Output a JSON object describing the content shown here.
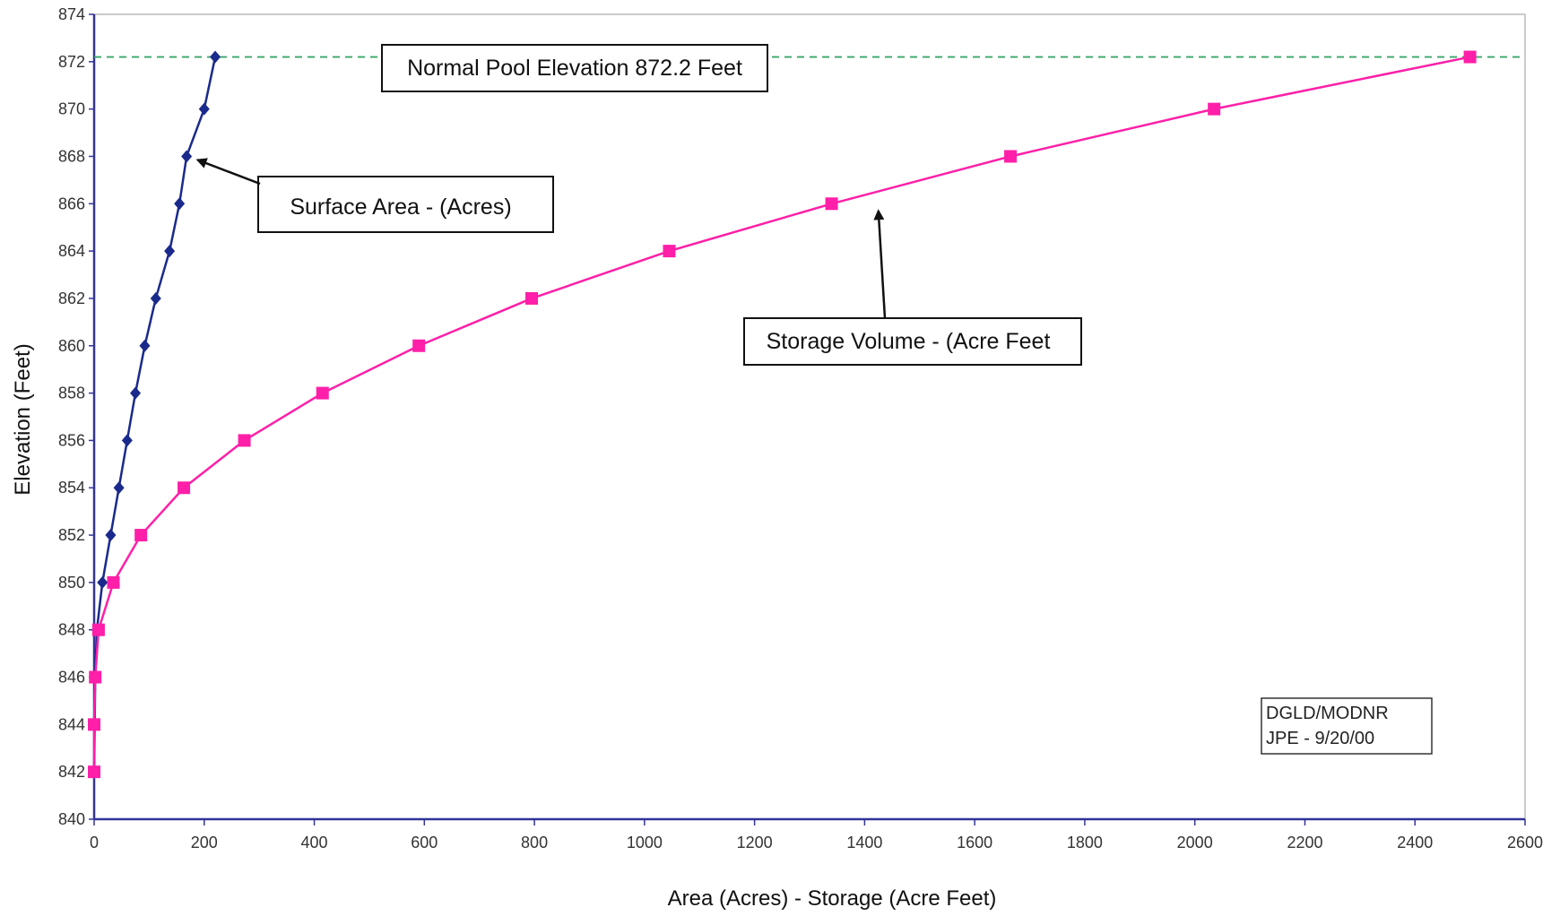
{
  "chart_data": {
    "type": "line",
    "xlabel": "Area (Acres) - Storage (Acre Feet)",
    "ylabel": "Elevation (Feet)",
    "xlim": [
      0,
      2600
    ],
    "ylim": [
      840,
      874
    ],
    "x_ticks": [
      0,
      200,
      400,
      600,
      800,
      1000,
      1200,
      1400,
      1600,
      1800,
      2000,
      2200,
      2400,
      2600
    ],
    "y_ticks": [
      840,
      842,
      844,
      846,
      848,
      850,
      852,
      854,
      856,
      858,
      860,
      862,
      864,
      866,
      868,
      870,
      872,
      874
    ],
    "grid": false,
    "legend": "none",
    "series": [
      {
        "name": "Surface Area - (Acres)",
        "color": "#1a2a8c",
        "marker": "diamond",
        "points": [
          {
            "x": 0,
            "y": 842
          },
          {
            "x": 1,
            "y": 844
          },
          {
            "x": 2,
            "y": 846
          },
          {
            "x": 5,
            "y": 848
          },
          {
            "x": 15,
            "y": 850
          },
          {
            "x": 30,
            "y": 852
          },
          {
            "x": 45,
            "y": 854
          },
          {
            "x": 60,
            "y": 856
          },
          {
            "x": 75,
            "y": 858
          },
          {
            "x": 92,
            "y": 860
          },
          {
            "x": 112,
            "y": 862
          },
          {
            "x": 137,
            "y": 864
          },
          {
            "x": 155,
            "y": 866
          },
          {
            "x": 168,
            "y": 868
          },
          {
            "x": 200,
            "y": 870
          },
          {
            "x": 220,
            "y": 872.2
          }
        ]
      },
      {
        "name": "Storage Volume - (Acre Feet",
        "color": "#ff1fa8",
        "marker": "square",
        "points": [
          {
            "x": 0,
            "y": 842
          },
          {
            "x": 0,
            "y": 844
          },
          {
            "x": 2,
            "y": 846
          },
          {
            "x": 8,
            "y": 848
          },
          {
            "x": 35,
            "y": 850
          },
          {
            "x": 85,
            "y": 852
          },
          {
            "x": 163,
            "y": 854
          },
          {
            "x": 273,
            "y": 856
          },
          {
            "x": 415,
            "y": 858
          },
          {
            "x": 590,
            "y": 860
          },
          {
            "x": 795,
            "y": 862
          },
          {
            "x": 1045,
            "y": 864
          },
          {
            "x": 1340,
            "y": 866
          },
          {
            "x": 1665,
            "y": 868
          },
          {
            "x": 2035,
            "y": 870
          },
          {
            "x": 2500,
            "y": 872.2
          }
        ]
      }
    ],
    "reference_line": {
      "y": 872.2,
      "color": "#3aa66a",
      "style": "dashed"
    },
    "annotations": [
      {
        "text": "Normal Pool Elevation 872.2 Feet",
        "boxed": true
      },
      {
        "text": "Surface Area - (Acres)",
        "boxed": true,
        "arrow_to": {
          "x": 175,
          "y": 868
        }
      },
      {
        "text": "Storage Volume - (Acre Feet",
        "boxed": true,
        "arrow_to": {
          "x": 1425,
          "y": 866
        }
      }
    ],
    "stamp": [
      "DGLD/MODNR",
      "JPE - 9/20/00"
    ]
  }
}
